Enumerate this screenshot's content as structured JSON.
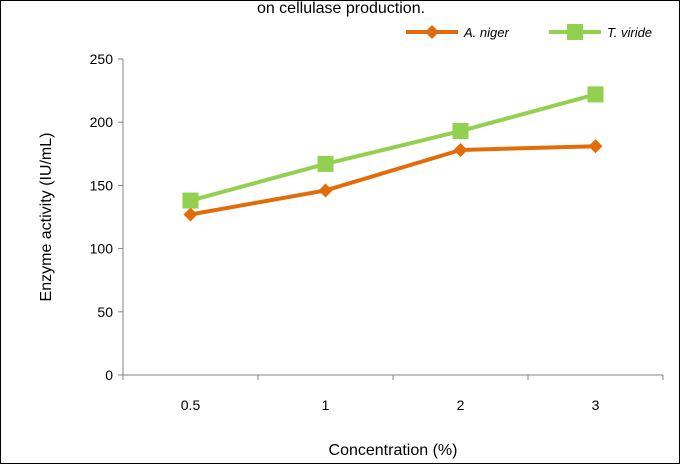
{
  "chart_data": {
    "type": "line",
    "title": "on cellulase production.",
    "xlabel": "Concentration (%)",
    "ylabel": "Enzyme activity  (IU/mL)",
    "categories": [
      "0.5",
      "1",
      "2",
      "3"
    ],
    "ylim": [
      0,
      250
    ],
    "yticks": [
      0,
      50,
      100,
      150,
      200,
      250
    ],
    "grid": false,
    "legend_position": "top-right",
    "series": [
      {
        "name": "A. niger",
        "values": [
          127,
          146,
          178,
          181
        ],
        "color": "#E36C0A",
        "marker": "diamond"
      },
      {
        "name": "T. viride",
        "values": [
          138,
          167,
          193,
          222
        ],
        "color": "#92D050",
        "marker": "square"
      }
    ]
  }
}
